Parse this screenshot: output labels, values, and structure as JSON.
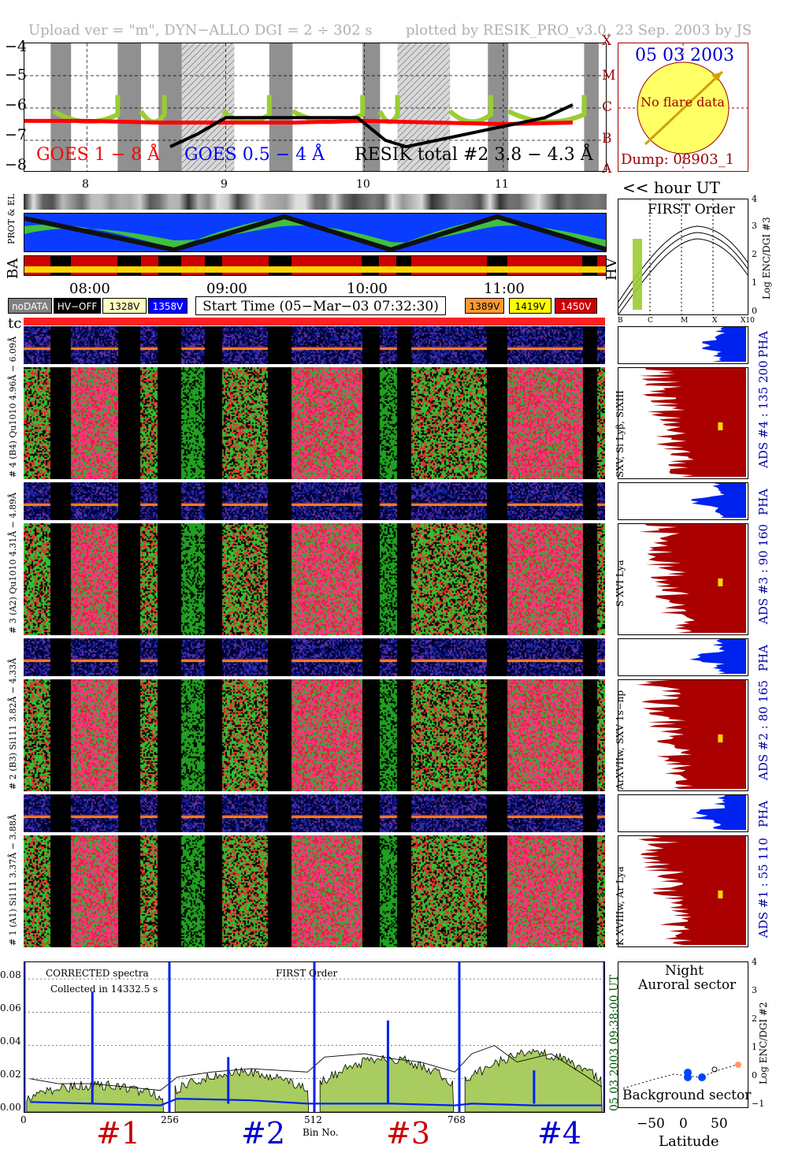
{
  "header": {
    "left": "Upload ver = \"m\", DYN−ALLO DGI =   2 ÷ 302 s",
    "right": "plotted by RESIK_PRO_v3.0, 23 Sep. 2003 by JS"
  },
  "goes_panel": {
    "y_ticks": [
      "−4",
      "−5",
      "−6",
      "−7",
      "−8"
    ],
    "class_labels": [
      "X",
      "M",
      "C",
      "B",
      "A"
    ],
    "label_goes18": "GOES 1 − 8 Å",
    "label_goes054": "GOES 0.5 − 4 Å",
    "label_resik": "RESIK total #2  3.8 − 4.3 Å",
    "x_hours": [
      "8",
      "9",
      "10",
      "11"
    ],
    "colors": {
      "goes18": "#ff0000",
      "goes054": "#0000ff",
      "resik": "#000000",
      "accent": "#9acd32"
    }
  },
  "sun_box": {
    "date": "05 03 2003",
    "flare": "No flare data",
    "dump": "Dump: 08903_1"
  },
  "hour_ut_label": "<< hour UT",
  "prot_label": "PROT & EL",
  "ba_label": "BA",
  "hv_label": "HV",
  "time_ticks": [
    "08:00",
    "09:00",
    "10:00",
    "11:00"
  ],
  "legend": {
    "items": [
      {
        "label": "noDATA",
        "bg": "#808080",
        "fg": "#ffffff"
      },
      {
        "label": "HV−OFF",
        "bg": "#000000",
        "fg": "#ffffff"
      },
      {
        "label": "1328V",
        "bg": "#ffffc0",
        "fg": "#000000"
      },
      {
        "label": "1358V",
        "bg": "#0000ff",
        "fg": "#ffffff"
      }
    ],
    "items_right": [
      {
        "label": "1389V",
        "bg": "#ff9933",
        "fg": "#000000"
      },
      {
        "label": "1419V",
        "bg": "#ffff00",
        "fg": "#000000"
      },
      {
        "label": "1450V",
        "bg": "#cc0000",
        "fg": "#ffffff"
      }
    ],
    "start_time": "Start Time (05−Mar−03 07:32:30)"
  },
  "tc_label": "tc",
  "first_order": {
    "title": "FIRST Order",
    "ylabel": "Log ENC/DGI #3",
    "y_ticks": [
      "4",
      "3",
      "2",
      "1",
      "0"
    ],
    "x_ticks": [
      "B",
      "C",
      "M",
      "X",
      "X10"
    ]
  },
  "channels": [
    {
      "pha_label": "6.09Å",
      "spec_label": "# 4 (B4) Qu1010  4.96Å −",
      "side": "SXV, Si Lyβ, SiXIII",
      "ads": "ADS #4 :  135 200"
    },
    {
      "pha_label": "4.89Å",
      "spec_label": "# 3 (A2) Qu1010  4.31Å −",
      "side": "S XVI Lya",
      "ads": "ADS #3 :   90 160"
    },
    {
      "pha_label": "4.33Å",
      "spec_label": "# 2 (B3) Si111  3.82Å −",
      "side": "ArXVIIw, SXV 1s−np",
      "ads": "ADS #2 :   80 165"
    },
    {
      "pha_label": "3.88Å",
      "spec_label": "# 1 (A1) Si111  3.37Å −",
      "side": "K XVIIIw, Ar Lya",
      "ads": "ADS #1 :   55 110"
    }
  ],
  "pha_word": "PHA",
  "bottom": {
    "text1": "CORRECTED spectra",
    "text2": "Collected in 14332.5 s",
    "text3": "FIRST Order",
    "right_label": "05 03 2003   09:38:00 UT",
    "xlabel": "Bin No.",
    "x_ticks": [
      "0",
      "256",
      "512",
      "768"
    ],
    "y_ticks": [
      "0.08",
      "0.06",
      "0.04",
      "0.02",
      "0.00"
    ],
    "channel_tags": [
      "#1",
      "#2",
      "#3",
      "#4"
    ]
  },
  "latitude": {
    "top": "Night",
    "top2": "Auroral sector",
    "bottom": "Background sector",
    "xlabel": "Latitude",
    "x_ticks": [
      "−50",
      "0",
      "50"
    ],
    "ylabel": "Log ENC/DGI #2",
    "y_ticks": [
      "4",
      "3",
      "2",
      "1",
      "0",
      "−1"
    ]
  },
  "chart_data": [
    {
      "type": "line",
      "title": "",
      "series": [
        {
          "name": "GOES 1 − 8 Å",
          "x": [
            7.55,
            8,
            8.5,
            9,
            9.5,
            10,
            10.5,
            11,
            11.5
          ],
          "y": [
            -6.4,
            -6.4,
            -6.45,
            -6.45,
            -6.45,
            -6.4,
            -6.45,
            -6.5,
            -6.45
          ]
        },
        {
          "name": "GOES 0.5 − 4 Å",
          "x": [
            7.55,
            8,
            8.5,
            9,
            9.5,
            10,
            10.5,
            11,
            11.5
          ],
          "y": [
            -8.0,
            -8.0,
            -8.0,
            -8.0,
            -8.0,
            -8.0,
            -8.0,
            -8.0,
            -8.0
          ]
        },
        {
          "name": "RESIK total #2  3.8 − 4.3 Å",
          "x": [
            8.6,
            8.8,
            9.0,
            9.95,
            10.15,
            10.3,
            11.3,
            11.5
          ],
          "y": [
            -7.2,
            -6.8,
            -6.3,
            -6.3,
            -7.0,
            -7.2,
            -6.3,
            -5.9
          ]
        }
      ],
      "ylim": [
        -8,
        -4
      ],
      "xlabel": "hour UT"
    },
    {
      "type": "line",
      "title": "",
      "xlabel": "Bin No.",
      "x_ticks": [
        0,
        256,
        512,
        768
      ],
      "ylim": [
        0,
        0.09
      ],
      "series": [
        {
          "x": [
            10,
            60,
            120,
            180,
            240,
            270,
            330,
            400,
            500,
            530,
            600,
            650,
            700,
            760,
            790,
            830,
            870,
            930,
            990,
            1020
          ],
          "y": [
            0.02,
            0.017,
            0.017,
            0.015,
            0.013,
            0.021,
            0.024,
            0.026,
            0.024,
            0.033,
            0.035,
            0.032,
            0.03,
            0.024,
            0.035,
            0.04,
            0.03,
            0.035,
            0.022,
            0.015
          ]
        },
        {
          "x": [
            10,
            120,
            240,
            270,
            400,
            500,
            530,
            650,
            760,
            790,
            900,
            1020
          ],
          "y": [
            0.006,
            0.005,
            0.004,
            0.008,
            0.007,
            0.005,
            0.005,
            0.005,
            0.004,
            0.005,
            0.004,
            0.004
          ]
        }
      ]
    }
  ]
}
